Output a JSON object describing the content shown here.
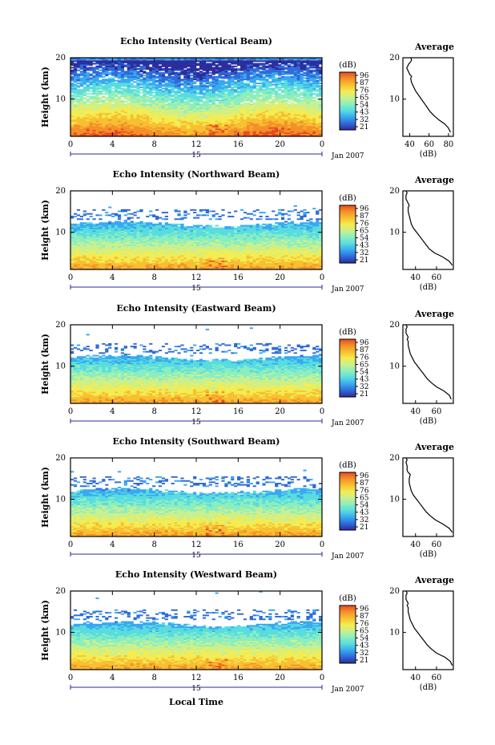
{
  "figure": {
    "colorbar_unit": "(dB)",
    "colorbar_ticks": [
      "96",
      "87",
      "76",
      "65",
      "54",
      "43",
      "32",
      "21"
    ],
    "colormap": [
      "#2c2c9c",
      "#2f6ad8",
      "#38a8f0",
      "#58dce0",
      "#8aeec0",
      "#c8f090",
      "#f4ec50",
      "#f8c030",
      "#f49028",
      "#e84a20"
    ],
    "date_label": "15",
    "month_label": "Jan 2007",
    "xlabel": "Local Time",
    "ylabel": "Height (km)",
    "profile_title": "Average",
    "profile_xlabel": "(dB)"
  },
  "chart_data": [
    {
      "type": "heatmap",
      "title": "Echo Intensity (Vertical Beam)",
      "x_ticks": [
        "0",
        "4",
        "8",
        "12",
        "16",
        "20",
        "0"
      ],
      "y_ticks": [
        "20",
        "10"
      ],
      "xlim": [
        0,
        24
      ],
      "ylim": [
        1,
        20
      ],
      "profile": {
        "title": "Average",
        "x_ticks": [
          "40",
          "60",
          "80"
        ],
        "xlim": [
          33,
          85
        ],
        "y_ticks": [
          "20",
          "10"
        ],
        "ylim": [
          1,
          20
        ],
        "x": [
          82,
          80,
          76,
          70,
          65,
          61,
          58,
          55,
          52,
          49,
          46,
          44,
          42,
          41,
          42,
          40,
          39,
          38,
          37,
          38,
          39,
          41,
          42,
          41
        ],
        "y": [
          2,
          3,
          4,
          5,
          6,
          7,
          8,
          9,
          10,
          11,
          12,
          13,
          14,
          15,
          15.5,
          16,
          16.5,
          17,
          17.5,
          18,
          18.5,
          19,
          19.5,
          20
        ]
      }
    },
    {
      "type": "heatmap",
      "title": "Echo Intensity (Northward Beam)",
      "x_ticks": [
        "0",
        "4",
        "8",
        "12",
        "16",
        "20",
        "0"
      ],
      "y_ticks": [
        "20",
        "10"
      ],
      "xlim": [
        0,
        24
      ],
      "ylim": [
        1,
        20
      ],
      "profile": {
        "title": "Average",
        "x_ticks": [
          "40",
          "60"
        ],
        "xlim": [
          28,
          76
        ],
        "y_ticks": [
          "20",
          "10"
        ],
        "ylim": [
          1,
          20
        ],
        "x": [
          75,
          72,
          66,
          58,
          53,
          50,
          47,
          44,
          41,
          38,
          36,
          35,
          34,
          33,
          33,
          34,
          33,
          32,
          31,
          31,
          32,
          31
        ],
        "y": [
          2,
          3,
          4,
          5,
          6,
          7,
          8,
          9,
          10,
          11,
          12,
          13,
          14,
          15,
          16,
          16.5,
          17,
          17.5,
          18,
          19,
          19.5,
          20
        ]
      }
    },
    {
      "type": "heatmap",
      "title": "Echo Intensity (Eastward Beam)",
      "x_ticks": [
        "0",
        "4",
        "8",
        "12",
        "16",
        "20",
        "0"
      ],
      "y_ticks": [
        "20",
        "10"
      ],
      "xlim": [
        0,
        24
      ],
      "ylim": [
        1,
        20
      ],
      "profile": {
        "title": "Average",
        "x_ticks": [
          "40",
          "60"
        ],
        "xlim": [
          28,
          76
        ],
        "y_ticks": [
          "20",
          "10"
        ],
        "ylim": [
          1,
          20
        ],
        "x": [
          74,
          72,
          67,
          60,
          55,
          51,
          48,
          45,
          42,
          39,
          37,
          35,
          34,
          33,
          33,
          32,
          33,
          32,
          31,
          31,
          32,
          31
        ],
        "y": [
          2,
          3,
          4,
          5,
          6,
          7,
          8,
          9,
          10,
          11,
          12,
          13,
          14,
          15,
          16,
          16.5,
          17,
          17.5,
          18,
          19,
          19.5,
          20
        ]
      }
    },
    {
      "type": "heatmap",
      "title": "Echo Intensity (Southward Beam)",
      "x_ticks": [
        "0",
        "4",
        "8",
        "12",
        "16",
        "20",
        "0"
      ],
      "y_ticks": [
        "20",
        "10"
      ],
      "xlim": [
        0,
        24
      ],
      "ylim": [
        1,
        20
      ],
      "profile": {
        "title": "Average",
        "x_ticks": [
          "40",
          "60"
        ],
        "xlim": [
          28,
          76
        ],
        "y_ticks": [
          "20",
          "10"
        ],
        "ylim": [
          1,
          20
        ],
        "x": [
          75,
          72,
          66,
          59,
          54,
          50,
          47,
          44,
          41,
          38,
          36,
          35,
          34,
          34,
          35,
          33,
          32,
          32,
          31,
          32,
          31
        ],
        "y": [
          2,
          3,
          4,
          5,
          6,
          7,
          8,
          9,
          10,
          11,
          12,
          13,
          14,
          15,
          16,
          16.5,
          17,
          18,
          19,
          19.5,
          20
        ]
      }
    },
    {
      "type": "heatmap",
      "title": "Echo Intensity (Westward Beam)",
      "x_ticks": [
        "0",
        "4",
        "8",
        "12",
        "16",
        "20",
        "0"
      ],
      "y_ticks": [
        "20",
        "10"
      ],
      "xlim": [
        0,
        24
      ],
      "ylim": [
        1,
        20
      ],
      "profile": {
        "title": "Average",
        "x_ticks": [
          "40",
          "60"
        ],
        "xlim": [
          28,
          76
        ],
        "y_ticks": [
          "20",
          "10"
        ],
        "ylim": [
          1,
          20
        ],
        "x": [
          75,
          73,
          68,
          60,
          55,
          51,
          48,
          45,
          42,
          39,
          37,
          35,
          34,
          33,
          33,
          32,
          33,
          32,
          31,
          31,
          32,
          31
        ],
        "y": [
          2,
          3,
          4,
          5,
          6,
          7,
          8,
          9,
          10,
          11,
          12,
          13,
          14,
          15,
          16,
          16.5,
          17,
          17.5,
          18,
          19,
          19.5,
          20
        ]
      }
    }
  ]
}
